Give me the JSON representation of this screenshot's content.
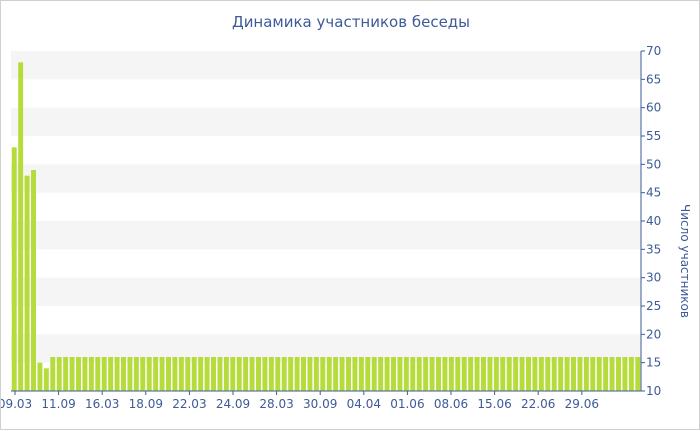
{
  "chart_data": {
    "type": "bar",
    "title": "Динамика участников беседы",
    "ylabel": "Число участников",
    "xlabel": "",
    "ylim": [
      10,
      70
    ],
    "yticks": [
      10,
      15,
      20,
      25,
      30,
      35,
      40,
      45,
      50,
      55,
      60,
      65,
      70
    ],
    "y_axis_position": "right",
    "grid": "alternating horizontal bands",
    "bar_color": "#b5dc3a",
    "band_color": "#f5f5f5",
    "axis_color": "#3d5a99",
    "x_tick_labels": [
      "09.03",
      "11.09",
      "16.03",
      "18.09",
      "22.03",
      "24.09",
      "28.03",
      "30.09",
      "04.04",
      "01.06",
      "08.06",
      "15.06",
      "22.06",
      "29.06"
    ],
    "values": [
      53,
      68,
      48,
      49,
      15,
      14,
      16,
      16,
      16,
      16,
      16,
      16,
      16,
      16,
      16,
      16,
      16,
      16,
      16,
      16,
      16,
      16,
      16,
      16,
      16,
      16,
      16,
      16,
      16,
      16,
      16,
      16,
      16,
      16,
      16,
      16,
      16,
      16,
      16,
      16,
      16,
      16,
      16,
      16,
      16,
      16,
      16,
      16,
      16,
      16,
      16,
      16,
      16,
      16,
      16,
      16,
      16,
      16,
      16,
      16,
      16,
      16,
      16,
      16,
      16,
      16,
      16,
      16,
      16,
      16,
      16,
      16,
      16,
      16,
      16,
      16,
      16,
      16,
      16,
      16,
      16,
      16,
      16,
      16,
      16,
      16,
      16,
      16,
      16,
      16,
      16,
      16,
      16,
      16,
      16,
      16,
      16,
      16
    ]
  }
}
